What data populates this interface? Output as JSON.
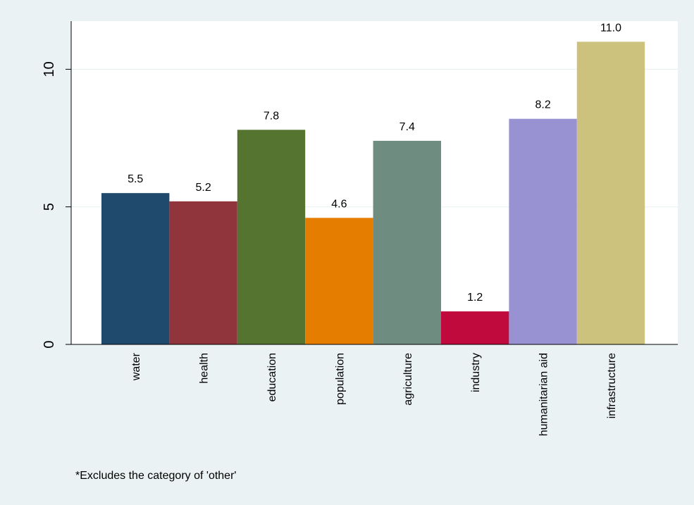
{
  "chart_data": {
    "type": "bar",
    "categories": [
      "water",
      "health",
      "education",
      "population",
      "agriculture",
      "industry",
      "humanitarian aid",
      "infrastructure"
    ],
    "values": [
      5.5,
      5.2,
      7.8,
      4.6,
      7.4,
      1.2,
      8.2,
      11.0
    ],
    "value_labels": [
      "5.5",
      "5.2",
      "7.8",
      "4.6",
      "7.4",
      "1.2",
      "8.2",
      "11.0"
    ],
    "colors": [
      "#1f4a6e",
      "#8f353b",
      "#55742f",
      "#e57e00",
      "#6e8c80",
      "#c0093c",
      "#9891d2",
      "#cdc17e"
    ],
    "y_ticks": [
      0,
      5,
      10
    ],
    "ylim": [
      0,
      11.75
    ],
    "grid": true,
    "legend": "none",
    "title": "",
    "xlabel": "",
    "ylabel": ""
  },
  "footnote": "*Excludes the category of 'other'",
  "colors": {
    "page_background": "#eaf2f3",
    "plot_background": "#ffffff",
    "gridline": "#eaf2f3",
    "axis": "#000000"
  }
}
